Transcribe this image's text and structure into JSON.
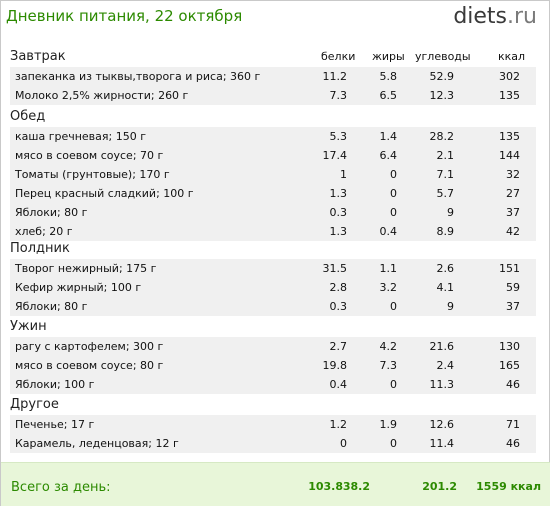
{
  "header": {
    "title": "Дневник питания, 22 октября",
    "logo_main": "diets",
    "logo_tld": ".ru"
  },
  "columns": {
    "protein": "белки",
    "fat": "жиры",
    "carbs": "углеводы",
    "kcal": "ккал"
  },
  "sections": [
    {
      "title": "Завтрак",
      "items": [
        {
          "name": "запеканка из тыквы,творога и риса; 360 г",
          "protein": "11.2",
          "fat": "5.8",
          "carbs": "52.9",
          "kcal": "302"
        },
        {
          "name": "Молоко 2,5% жирности; 260 г",
          "protein": "7.3",
          "fat": "6.5",
          "carbs": "12.3",
          "kcal": "135"
        }
      ]
    },
    {
      "title": "Обед",
      "items": [
        {
          "name": "каша гречневая; 150 г",
          "protein": "5.3",
          "fat": "1.4",
          "carbs": "28.2",
          "kcal": "135"
        },
        {
          "name": "мясо в соевом соусе; 70 г",
          "protein": "17.4",
          "fat": "6.4",
          "carbs": "2.1",
          "kcal": "144"
        },
        {
          "name": "Томаты (грунтовые); 170 г",
          "protein": "1",
          "fat": "0",
          "carbs": "7.1",
          "kcal": "32"
        },
        {
          "name": "Перец красный сладкий; 100 г",
          "protein": "1.3",
          "fat": "0",
          "carbs": "5.7",
          "kcal": "27"
        },
        {
          "name": "Яблоки; 80 г",
          "protein": "0.3",
          "fat": "0",
          "carbs": "9",
          "kcal": "37"
        },
        {
          "name": "хлеб; 20 г",
          "protein": "1.3",
          "fat": "0.4",
          "carbs": "8.9",
          "kcal": "42"
        }
      ]
    },
    {
      "title": "Полдник",
      "items": [
        {
          "name": "Творог нежирный; 175 г",
          "protein": "31.5",
          "fat": "1.1",
          "carbs": "2.6",
          "kcal": "151"
        },
        {
          "name": "Кефир жирный; 100 г",
          "protein": "2.8",
          "fat": "3.2",
          "carbs": "4.1",
          "kcal": "59"
        },
        {
          "name": "Яблоки; 80 г",
          "protein": "0.3",
          "fat": "0",
          "carbs": "9",
          "kcal": "37"
        }
      ]
    },
    {
      "title": "Ужин",
      "items": [
        {
          "name": "рагу с картофелем; 300 г",
          "protein": "2.7",
          "fat": "4.2",
          "carbs": "21.6",
          "kcal": "130"
        },
        {
          "name": "мясо в соевом соусе; 80 г",
          "protein": "19.8",
          "fat": "7.3",
          "carbs": "2.4",
          "kcal": "165"
        },
        {
          "name": "Яблоки; 100 г",
          "protein": "0.4",
          "fat": "0",
          "carbs": "11.3",
          "kcal": "46"
        }
      ]
    },
    {
      "title": "Другое",
      "items": [
        {
          "name": "Печенье; 17 г",
          "protein": "1.2",
          "fat": "1.9",
          "carbs": "12.6",
          "kcal": "71"
        },
        {
          "name": "Карамель, леденцовая; 12 г",
          "protein": "0",
          "fat": "0",
          "carbs": "11.4",
          "kcal": "46"
        }
      ]
    }
  ],
  "totals": {
    "label": "Всего за день:",
    "protein": "103.8",
    "fat": "38.2",
    "carbs": "201.2",
    "kcal": "1559 ккал"
  }
}
